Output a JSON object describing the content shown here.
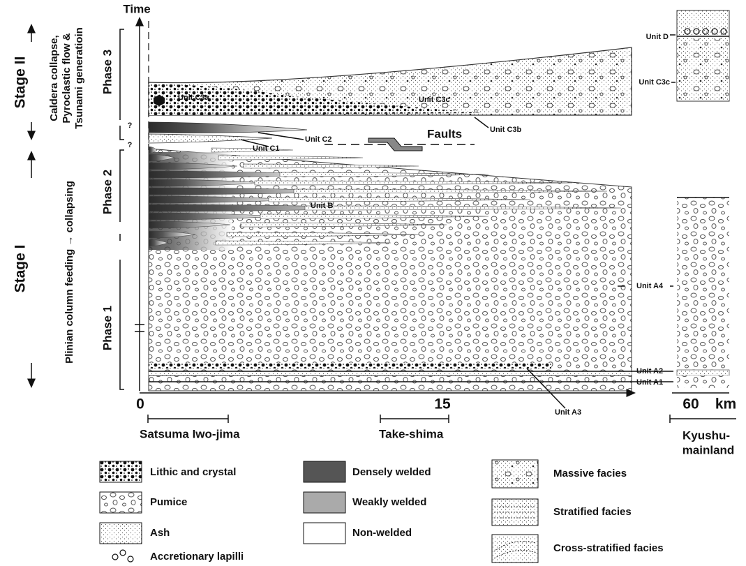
{
  "axis": {
    "time": "Time",
    "origin": "0",
    "mid": "15",
    "far": "60",
    "unit": "km"
  },
  "stages": [
    {
      "label": "Stage II",
      "description": [
        "Caldera collapse,",
        "Pyroclastic flow &",
        "Tsunami generatioin"
      ]
    },
    {
      "label": "Stage I",
      "description": [
        "Plinian column feeding → collapsing"
      ]
    }
  ],
  "phases": [
    "Phase 3",
    "Phase 2",
    "Phase 1"
  ],
  "uncertain": [
    "?",
    "?"
  ],
  "units": [
    "Unit C3a",
    "Unit C3c",
    "Unit C3b",
    "Unit C2",
    "Unit C1",
    "Unit B",
    "Unit A4",
    "Unit A2",
    "Unit A1",
    "Unit A3",
    "Unit D",
    "Unit C3c"
  ],
  "faults": "Faults",
  "locations": [
    [
      "Satsuma Iwo-jima"
    ],
    [
      "Take-shima"
    ],
    [
      "Kyushu-",
      "mainland"
    ]
  ],
  "legend": {
    "lithology": [
      "Lithic and crystal",
      "Pumice",
      "Ash",
      "Accretionary lapilli"
    ],
    "welding": [
      "Densely welded",
      "Weakly welded",
      "Non-welded"
    ],
    "facies": [
      "Massive facies",
      "Stratified facies",
      "Cross-stratified facies"
    ]
  }
}
